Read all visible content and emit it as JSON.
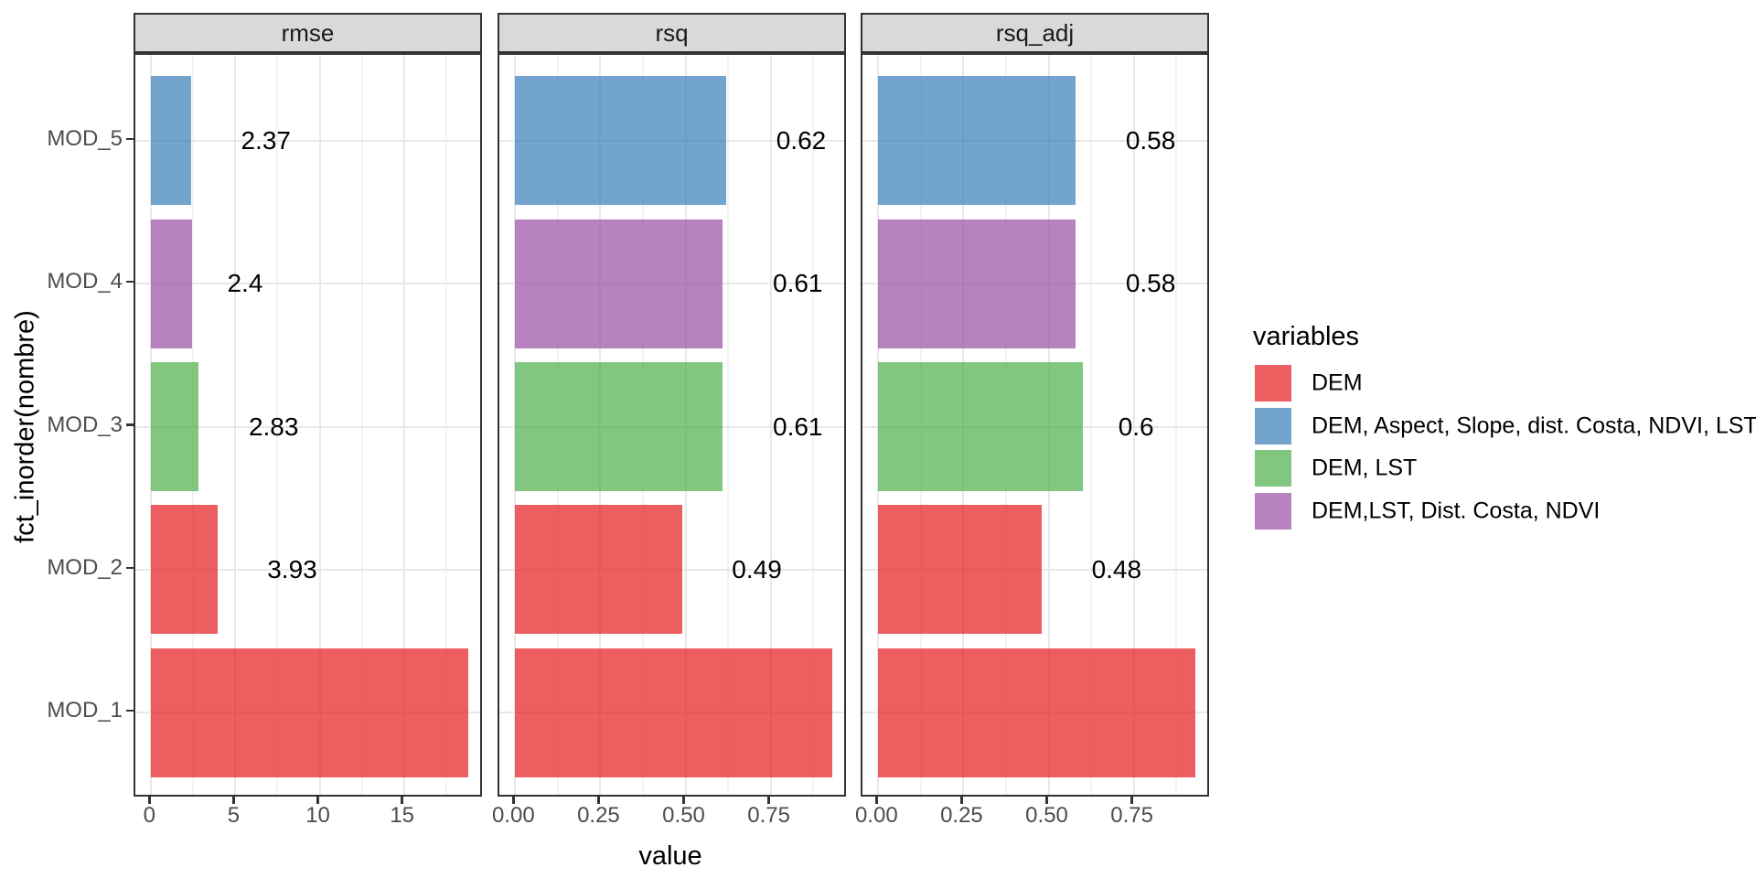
{
  "figure": {
    "x_axis_title": "value",
    "y_axis_title": "fct_inorder(nombre)"
  },
  "legend": {
    "title": "variables",
    "items": [
      {
        "label": "DEM",
        "color": "rgba(228,26,28,0.7)"
      },
      {
        "label": "DEM, Aspect, Slope, dist. Costa, NDVI, LST",
        "color": "rgba(55,126,184,0.7)"
      },
      {
        "label": "DEM, LST",
        "color": "rgba(77,175,74,0.7)"
      },
      {
        "label": "DEM,LST, Dist. Costa, NDVI",
        "color": "rgba(152,78,163,0.7)"
      }
    ]
  },
  "chart_data": {
    "type": "bar",
    "orientation": "horizontal",
    "xlabel": "value",
    "ylabel": "fct_inorder(nombre)",
    "legend_title": "variables",
    "legend_position": "right",
    "grid": true,
    "y_categories_top_to_bottom": [
      "MOD_5",
      "MOD_4",
      "MOD_3",
      "MOD_2",
      "MOD_1"
    ],
    "color_map": {
      "DEM": "rgba(228,26,28,0.7)",
      "DEM, Aspect, Slope, dist. Costa, NDVI, LST": "rgba(55,126,184,0.7)",
      "DEM, LST": "rgba(77,175,74,0.7)",
      "DEM,LST, Dist. Costa, NDVI": "rgba(152,78,163,0.7)"
    },
    "facets": [
      {
        "name": "rmse",
        "x_ticks": [
          0,
          5,
          10,
          15
        ],
        "x_tick_labels": [
          "0",
          "5",
          "10",
          "15"
        ],
        "x_data_max": 18.8,
        "bars": [
          {
            "model": "MOD_5",
            "value": 2.37,
            "label": "2.37",
            "group": "DEM, Aspect, Slope, dist. Costa, NDVI, LST"
          },
          {
            "model": "MOD_4",
            "value": 2.4,
            "label": "2.4",
            "group": "DEM,LST, Dist. Costa, NDVI"
          },
          {
            "model": "MOD_3",
            "value": 2.83,
            "label": "2.83",
            "group": "DEM, LST"
          },
          {
            "model": "MOD_2",
            "value": 3.93,
            "label": "3.93",
            "group": "DEM"
          },
          {
            "model": "MOD_1",
            "value": 18.8,
            "label": "",
            "group": "DEM"
          }
        ]
      },
      {
        "name": "rsq",
        "x_ticks": [
          0,
          0.25,
          0.5,
          0.75
        ],
        "x_tick_labels": [
          "0.00",
          "0.25",
          "0.50",
          "0.75"
        ],
        "x_data_max": 0.93,
        "bars": [
          {
            "model": "MOD_5",
            "value": 0.62,
            "label": "0.62",
            "group": "DEM, Aspect, Slope, dist. Costa, NDVI, LST"
          },
          {
            "model": "MOD_4",
            "value": 0.61,
            "label": "0.61",
            "group": "DEM,LST, Dist. Costa, NDVI"
          },
          {
            "model": "MOD_3",
            "value": 0.61,
            "label": "0.61",
            "group": "DEM, LST"
          },
          {
            "model": "MOD_2",
            "value": 0.49,
            "label": "0.49",
            "group": "DEM"
          },
          {
            "model": "MOD_1",
            "value": 0.93,
            "label": "",
            "group": "DEM"
          }
        ]
      },
      {
        "name": "rsq_adj",
        "x_ticks": [
          0,
          0.25,
          0.5,
          0.75
        ],
        "x_tick_labels": [
          "0.00",
          "0.25",
          "0.50",
          "0.75"
        ],
        "x_data_max": 0.93,
        "bars": [
          {
            "model": "MOD_5",
            "value": 0.58,
            "label": "0.58",
            "group": "DEM, Aspect, Slope, dist. Costa, NDVI, LST"
          },
          {
            "model": "MOD_4",
            "value": 0.58,
            "label": "0.58",
            "group": "DEM,LST, Dist. Costa, NDVI"
          },
          {
            "model": "MOD_3",
            "value": 0.6,
            "label": "0.6",
            "group": "DEM, LST"
          },
          {
            "model": "MOD_2",
            "value": 0.48,
            "label": "0.48",
            "group": "DEM"
          },
          {
            "model": "MOD_1",
            "value": 0.93,
            "label": "",
            "group": "DEM"
          }
        ]
      }
    ]
  }
}
